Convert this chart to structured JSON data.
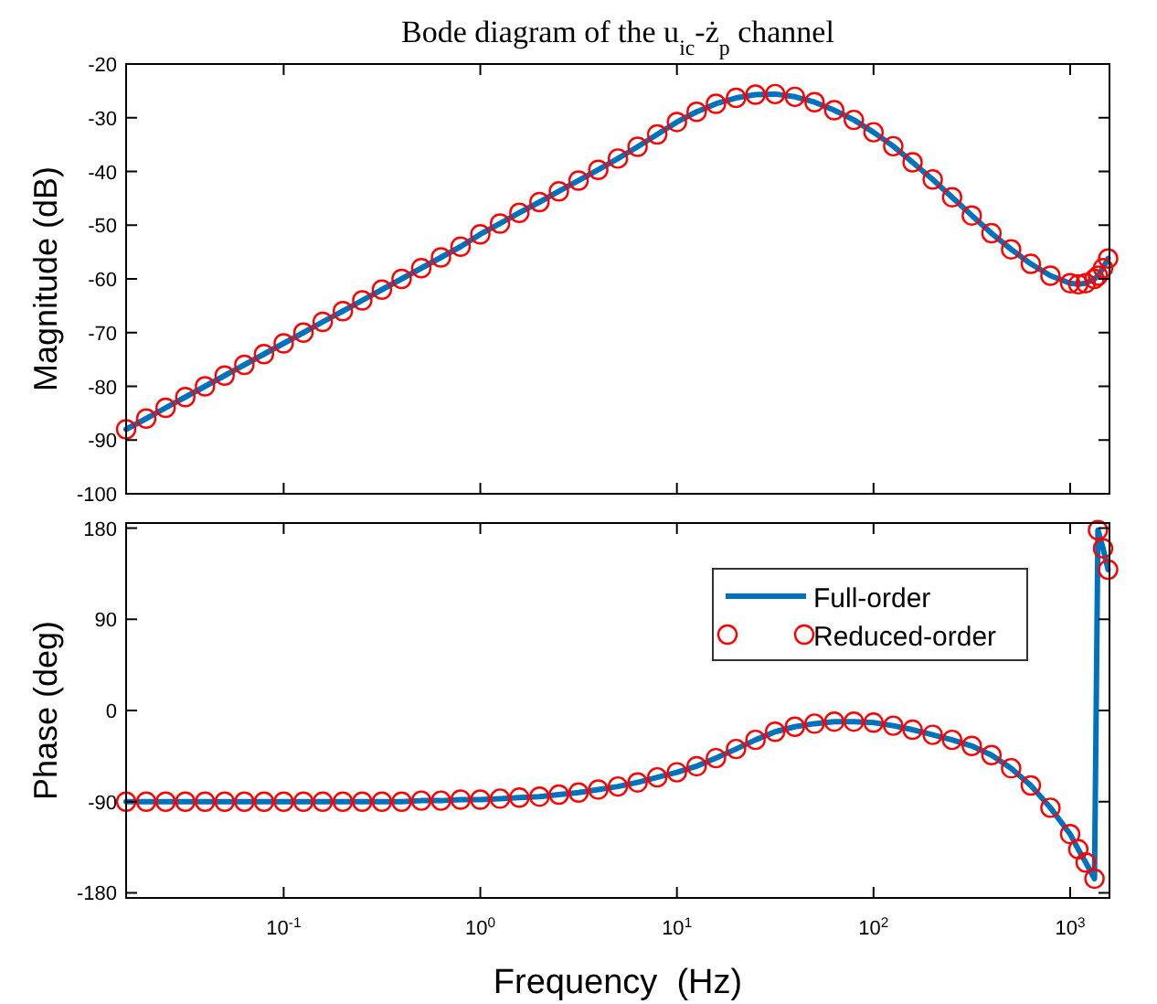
{
  "chart_data": [
    {
      "type": "line",
      "title": "Bode diagram of the u$_{ic}$-ż$_{p}$ channel",
      "ylabel": "Magnitude (dB)",
      "log": "x",
      "tick_labels": "y",
      "x": [
        0.0158,
        0.02,
        0.0251,
        0.0316,
        0.0398,
        0.0501,
        0.0631,
        0.0794,
        0.1,
        0.126,
        0.158,
        0.2,
        0.251,
        0.316,
        0.398,
        0.501,
        0.631,
        0.794,
        1,
        1.26,
        1.58,
        2,
        2.51,
        3.16,
        3.98,
        5.01,
        6.31,
        7.94,
        10,
        12.6,
        15.8,
        20,
        25.1,
        31.6,
        39.8,
        50.1,
        63.1,
        79.4,
        100,
        126,
        158,
        200,
        251,
        316,
        398,
        501,
        631,
        794,
        1000,
        1100,
        1200,
        1330,
        1385,
        1470,
        1560
      ],
      "xlim": [
        0.0158,
        1585
      ],
      "xticks": [
        {
          "value": 0.1,
          "label": null
        },
        {
          "value": 1,
          "label": null
        },
        {
          "value": 10,
          "label": null
        },
        {
          "value": 100,
          "label": null
        },
        {
          "value": 1000,
          "label": null
        }
      ],
      "ylim": [
        -100,
        -20
      ],
      "yticks": [
        -100,
        -90,
        -80,
        -70,
        -60,
        -50,
        -40,
        -30,
        -20
      ],
      "series": [
        {
          "color": "#0072bd",
          "values": [
            -88,
            -86,
            -84,
            -82,
            -80,
            -78,
            -76,
            -74,
            -72,
            -70,
            -68,
            -66,
            -64,
            -62,
            -60,
            -58,
            -56,
            -54,
            -51.7,
            -49.7,
            -47.7,
            -45.7,
            -43.7,
            -41.7,
            -39.7,
            -37.6,
            -35.4,
            -33.1,
            -30.8,
            -28.9,
            -27.4,
            -26.3,
            -25.7,
            -25.6,
            -26.1,
            -27.1,
            -28.6,
            -30.4,
            -32.7,
            -35.3,
            -38.3,
            -41.5,
            -44.8,
            -48.2,
            -51.5,
            -54.5,
            -57.2,
            -59.4,
            -60.8,
            -61,
            -60.8,
            -60,
            -59.4,
            -58,
            -56.2
          ]
        },
        {
          "type": "scatter",
          "marker": "circle",
          "color": "#ff0000",
          "values": [
            -88,
            -86,
            -84,
            -82,
            -80,
            -78,
            -76,
            -74,
            -72,
            -70,
            -68,
            -66,
            -64,
            -62,
            -60,
            -58,
            -56,
            -54,
            -51.7,
            -49.7,
            -47.7,
            -45.7,
            -43.7,
            -41.7,
            -39.7,
            -37.6,
            -35.4,
            -33.1,
            -30.8,
            -28.9,
            -27.4,
            -26.3,
            -25.7,
            -25.6,
            -26.1,
            -27.1,
            -28.6,
            -30.4,
            -32.7,
            -35.3,
            -38.3,
            -41.5,
            -44.8,
            -48.2,
            -51.5,
            -54.5,
            -57.2,
            -59.4,
            -60.8,
            -61,
            -60.8,
            -60,
            -59.4,
            -58,
            -56.2
          ]
        }
      ]
    },
    {
      "type": "line",
      "xlabel": "Frequency  (Hz)",
      "ylabel": "Phase (deg)",
      "log": "x",
      "legend": "top right",
      "x": [
        0.0158,
        0.02,
        0.0251,
        0.0316,
        0.0398,
        0.0501,
        0.0631,
        0.0794,
        0.1,
        0.126,
        0.158,
        0.2,
        0.251,
        0.316,
        0.398,
        0.501,
        0.631,
        0.794,
        1,
        1.26,
        1.58,
        2,
        2.51,
        3.16,
        3.98,
        5.01,
        6.31,
        7.94,
        10,
        12.6,
        15.8,
        20,
        25.1,
        31.6,
        39.8,
        50.1,
        63.1,
        79.4,
        100,
        126,
        158,
        200,
        251,
        316,
        398,
        501,
        631,
        794,
        1000,
        1100,
        1200,
        1330,
        1385,
        1470,
        1560
      ],
      "xlim": [
        0.0158,
        1585
      ],
      "xticks": [
        {
          "value": 0.1,
          "label": "10$^{-1}$"
        },
        {
          "value": 1,
          "label": "10$^{0}$"
        },
        {
          "value": 10,
          "label": "10$^{1}$"
        },
        {
          "value": 100,
          "label": "10$^{2}$"
        },
        {
          "value": 1000,
          "label": "10$^{3}$"
        }
      ],
      "ylim": [
        -185,
        185
      ],
      "yticks": [
        -180,
        -90,
        0,
        90,
        180
      ],
      "series": [
        {
          "name": "Full-order",
          "color": "#0072bd",
          "values": [
            -90,
            -90,
            -90,
            -90,
            -90,
            -90,
            -90,
            -90,
            -90,
            -90,
            -90,
            -90,
            -90,
            -90,
            -90,
            -89,
            -89,
            -88,
            -88,
            -87,
            -86,
            -85,
            -83,
            -81,
            -78,
            -75,
            -71,
            -66,
            -61,
            -55,
            -47,
            -38,
            -29,
            -21,
            -16,
            -13,
            -11,
            -11,
            -12,
            -15,
            -19,
            -24,
            -29,
            -35,
            -44,
            -57,
            -74,
            -96,
            -122,
            -137,
            -150,
            -166,
            178,
            160,
            139
          ]
        },
        {
          "type": "scatter",
          "name": "Reduced-order",
          "marker": "circle",
          "color": "#ff0000",
          "values": [
            -90,
            -90,
            -90,
            -90,
            -90,
            -90,
            -90,
            -90,
            -90,
            -90,
            -90,
            -90,
            -90,
            -90,
            -90,
            -89,
            -89,
            -88,
            -88,
            -87,
            -86,
            -85,
            -83,
            -81,
            -78,
            -75,
            -71,
            -66,
            -61,
            -55,
            -47,
            -38,
            -29,
            -21,
            -16,
            -13,
            -11,
            -11,
            -12,
            -15,
            -19,
            -24,
            -29,
            -35,
            -44,
            -57,
            -74,
            -96,
            -122,
            -137,
            -150,
            -166,
            178,
            160,
            139
          ]
        }
      ]
    }
  ]
}
